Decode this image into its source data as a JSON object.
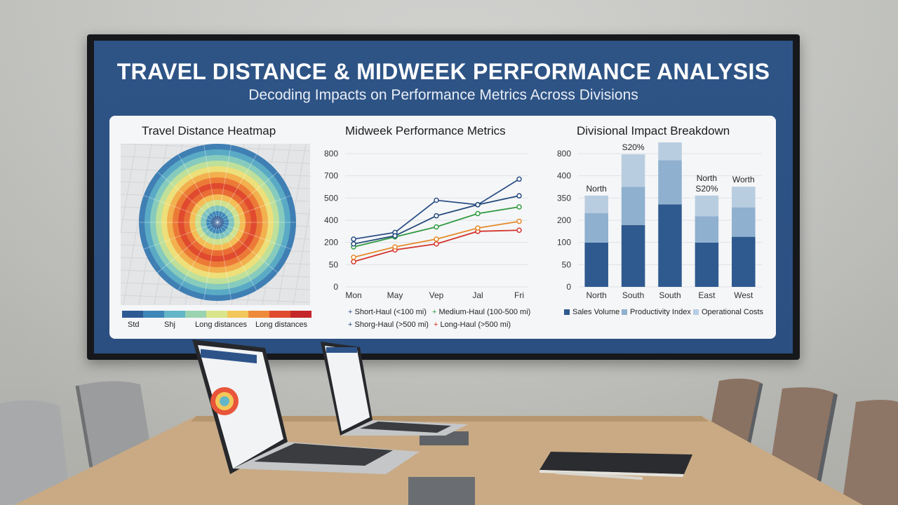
{
  "presentation": {
    "title": "TRAVEL DISTANCE & MIDWEEK PERFORMANCE ANALYSIS",
    "subtitle": "Decoding Impacts on Performance Metrics Across Divisions"
  },
  "heatmap": {
    "title": "Travel Distance Heatmap",
    "colors": [
      "#2e5a93",
      "#3f86b8",
      "#63b6c8",
      "#9ad3b0",
      "#d9e58a",
      "#f3c85a",
      "#ee8a3a",
      "#e04a2e",
      "#c5262a"
    ],
    "legend_labels": [
      "Std",
      "Shj",
      "Long distances",
      "Long distances"
    ]
  },
  "chart_data": [
    {
      "type": "line",
      "title": "Midweek Performance Metrics",
      "categories": [
        "Mon",
        "May",
        "Vep",
        "Jal",
        "Fri"
      ],
      "yticks": [
        "0",
        "50",
        "200",
        "400",
        "500",
        "700",
        "800"
      ],
      "series": [
        {
          "name": "Short-Haul (<100 mi)",
          "color": "#2c4f86",
          "values": [
            230,
            290,
            490,
            470,
            670
          ]
        },
        {
          "name": "Medium-Haul (100-500 mi)",
          "color": "#2f9a3f",
          "values": [
            170,
            250,
            340,
            430,
            460
          ]
        },
        {
          "name": "Shorg-Haul (>500 mi)",
          "color": "#234a7a",
          "values": [
            190,
            260,
            420,
            470,
            520
          ]
        },
        {
          "name": "Long-Haul (>500 mi)",
          "color": "#d4342c",
          "values": [
            70,
            150,
            190,
            300,
            310
          ]
        },
        {
          "name": "",
          "color": "#e58a2a",
          "values": [
            100,
            170,
            230,
            330,
            390
          ]
        }
      ]
    },
    {
      "type": "bar",
      "title": "Divisional Impact Breakdown",
      "categories": [
        "North",
        "South",
        "South",
        "East",
        "West"
      ],
      "yticks": [
        "0",
        "50",
        "100",
        "200",
        "350",
        "400",
        "800"
      ],
      "bar_labels": [
        "North",
        "North S20%",
        "North",
        "North S20%",
        "Worth"
      ],
      "series": [
        {
          "name": "Sales Volume",
          "color": "#2f5a8f",
          "values": [
            150,
            210,
            280,
            150,
            170
          ]
        },
        {
          "name": "Productivity Index",
          "color": "#8fb0cf",
          "values": [
            100,
            130,
            150,
            90,
            100
          ]
        },
        {
          "name": "Operational Costs",
          "color": "#b9cde0",
          "values": [
            60,
            110,
            120,
            70,
            70
          ]
        }
      ]
    }
  ],
  "room": {
    "wall_color": "#c9cac6",
    "table_color": "#c8a982"
  }
}
